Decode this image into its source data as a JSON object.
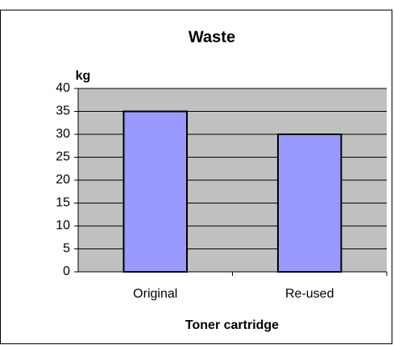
{
  "chart_data": {
    "type": "bar",
    "title": "Waste",
    "y_label": "kg",
    "x_label": "Toner cartridge",
    "categories": [
      "Original",
      "Re-used"
    ],
    "values": [
      35,
      30
    ],
    "color": "#9999ff",
    "ylim": [
      0,
      40
    ],
    "yticks": [
      0,
      5,
      10,
      15,
      20,
      25,
      30,
      35,
      40
    ],
    "grid": true
  }
}
